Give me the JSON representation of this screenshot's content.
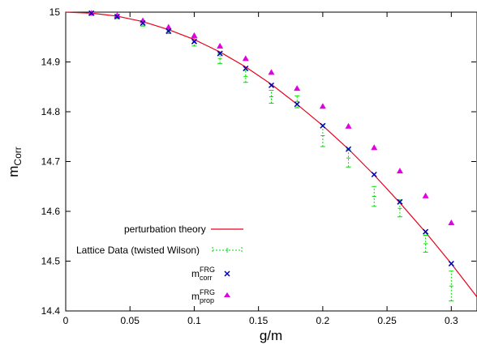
{
  "chart_data": {
    "type": "scatter",
    "xlabel": "g/m",
    "ylabel": {
      "base": "m",
      "sub": "Corr"
    },
    "xlim": [
      0,
      0.32
    ],
    "ylim": [
      14.4,
      15
    ],
    "xticks": [
      0,
      0.05,
      0.1,
      0.15,
      0.2,
      0.25,
      0.3
    ],
    "yticks": [
      14.4,
      14.5,
      14.6,
      14.7,
      14.8,
      14.9,
      15
    ],
    "xtick_labels": [
      "0",
      "0.05",
      "0.1",
      "0.15",
      "0.2",
      "0.25",
      "0.3"
    ],
    "ytick_labels": [
      "14.4",
      "14.5",
      "14.6",
      "14.7",
      "14.8",
      "14.9",
      "15"
    ],
    "grid": false,
    "legend_position": "bottom-left",
    "colors": {
      "perturbation": "#e8001c",
      "lattice": "#00dd00",
      "corr": "#0000b0",
      "prop": "#e000e0"
    },
    "series": [
      {
        "name": "perturbation theory",
        "kind": "curve",
        "x": [
          0,
          0.02,
          0.04,
          0.06,
          0.08,
          0.1,
          0.12,
          0.14,
          0.16,
          0.18,
          0.2,
          0.22,
          0.24,
          0.26,
          0.28,
          0.3,
          0.32
        ],
        "y": [
          15.0,
          14.998,
          14.992,
          14.981,
          14.965,
          14.945,
          14.92,
          14.89,
          14.855,
          14.815,
          14.772,
          14.725,
          14.673,
          14.617,
          14.558,
          14.495,
          14.428
        ]
      },
      {
        "name": "Lattice Data (twisted Wilson)",
        "kind": "errorbar",
        "x": [
          0.02,
          0.04,
          0.06,
          0.08,
          0.1,
          0.12,
          0.14,
          0.16,
          0.18,
          0.2,
          0.22,
          0.24,
          0.26,
          0.28,
          0.3
        ],
        "y": [
          14.998,
          14.99,
          14.976,
          14.962,
          14.94,
          14.907,
          14.871,
          14.83,
          14.82,
          14.752,
          14.707,
          14.63,
          14.606,
          14.535,
          14.45
        ],
        "yerr": [
          0.002,
          0.003,
          0.004,
          0.005,
          0.008,
          0.01,
          0.012,
          0.013,
          0.012,
          0.022,
          0.018,
          0.02,
          0.017,
          0.017,
          0.03
        ]
      },
      {
        "name": {
          "base": "m",
          "sup": "FRG",
          "sub": "corr"
        },
        "kind": "points",
        "marker": "x",
        "x": [
          0.02,
          0.04,
          0.06,
          0.08,
          0.1,
          0.12,
          0.14,
          0.16,
          0.18,
          0.2,
          0.22,
          0.24,
          0.26,
          0.28,
          0.3
        ],
        "y": [
          14.998,
          14.991,
          14.978,
          14.962,
          14.941,
          14.917,
          14.887,
          14.853,
          14.815,
          14.772,
          14.725,
          14.674,
          14.619,
          14.559,
          14.495
        ]
      },
      {
        "name": {
          "base": "m",
          "sup": "FRG",
          "sub": "prop"
        },
        "kind": "points",
        "marker": "triangle",
        "x": [
          0.02,
          0.04,
          0.06,
          0.08,
          0.1,
          0.12,
          0.14,
          0.16,
          0.18,
          0.2,
          0.22,
          0.24,
          0.26,
          0.28,
          0.3
        ],
        "y": [
          14.998,
          14.993,
          14.983,
          14.97,
          14.953,
          14.932,
          14.907,
          14.879,
          14.847,
          14.811,
          14.771,
          14.728,
          14.681,
          14.631,
          14.577
        ]
      }
    ]
  }
}
